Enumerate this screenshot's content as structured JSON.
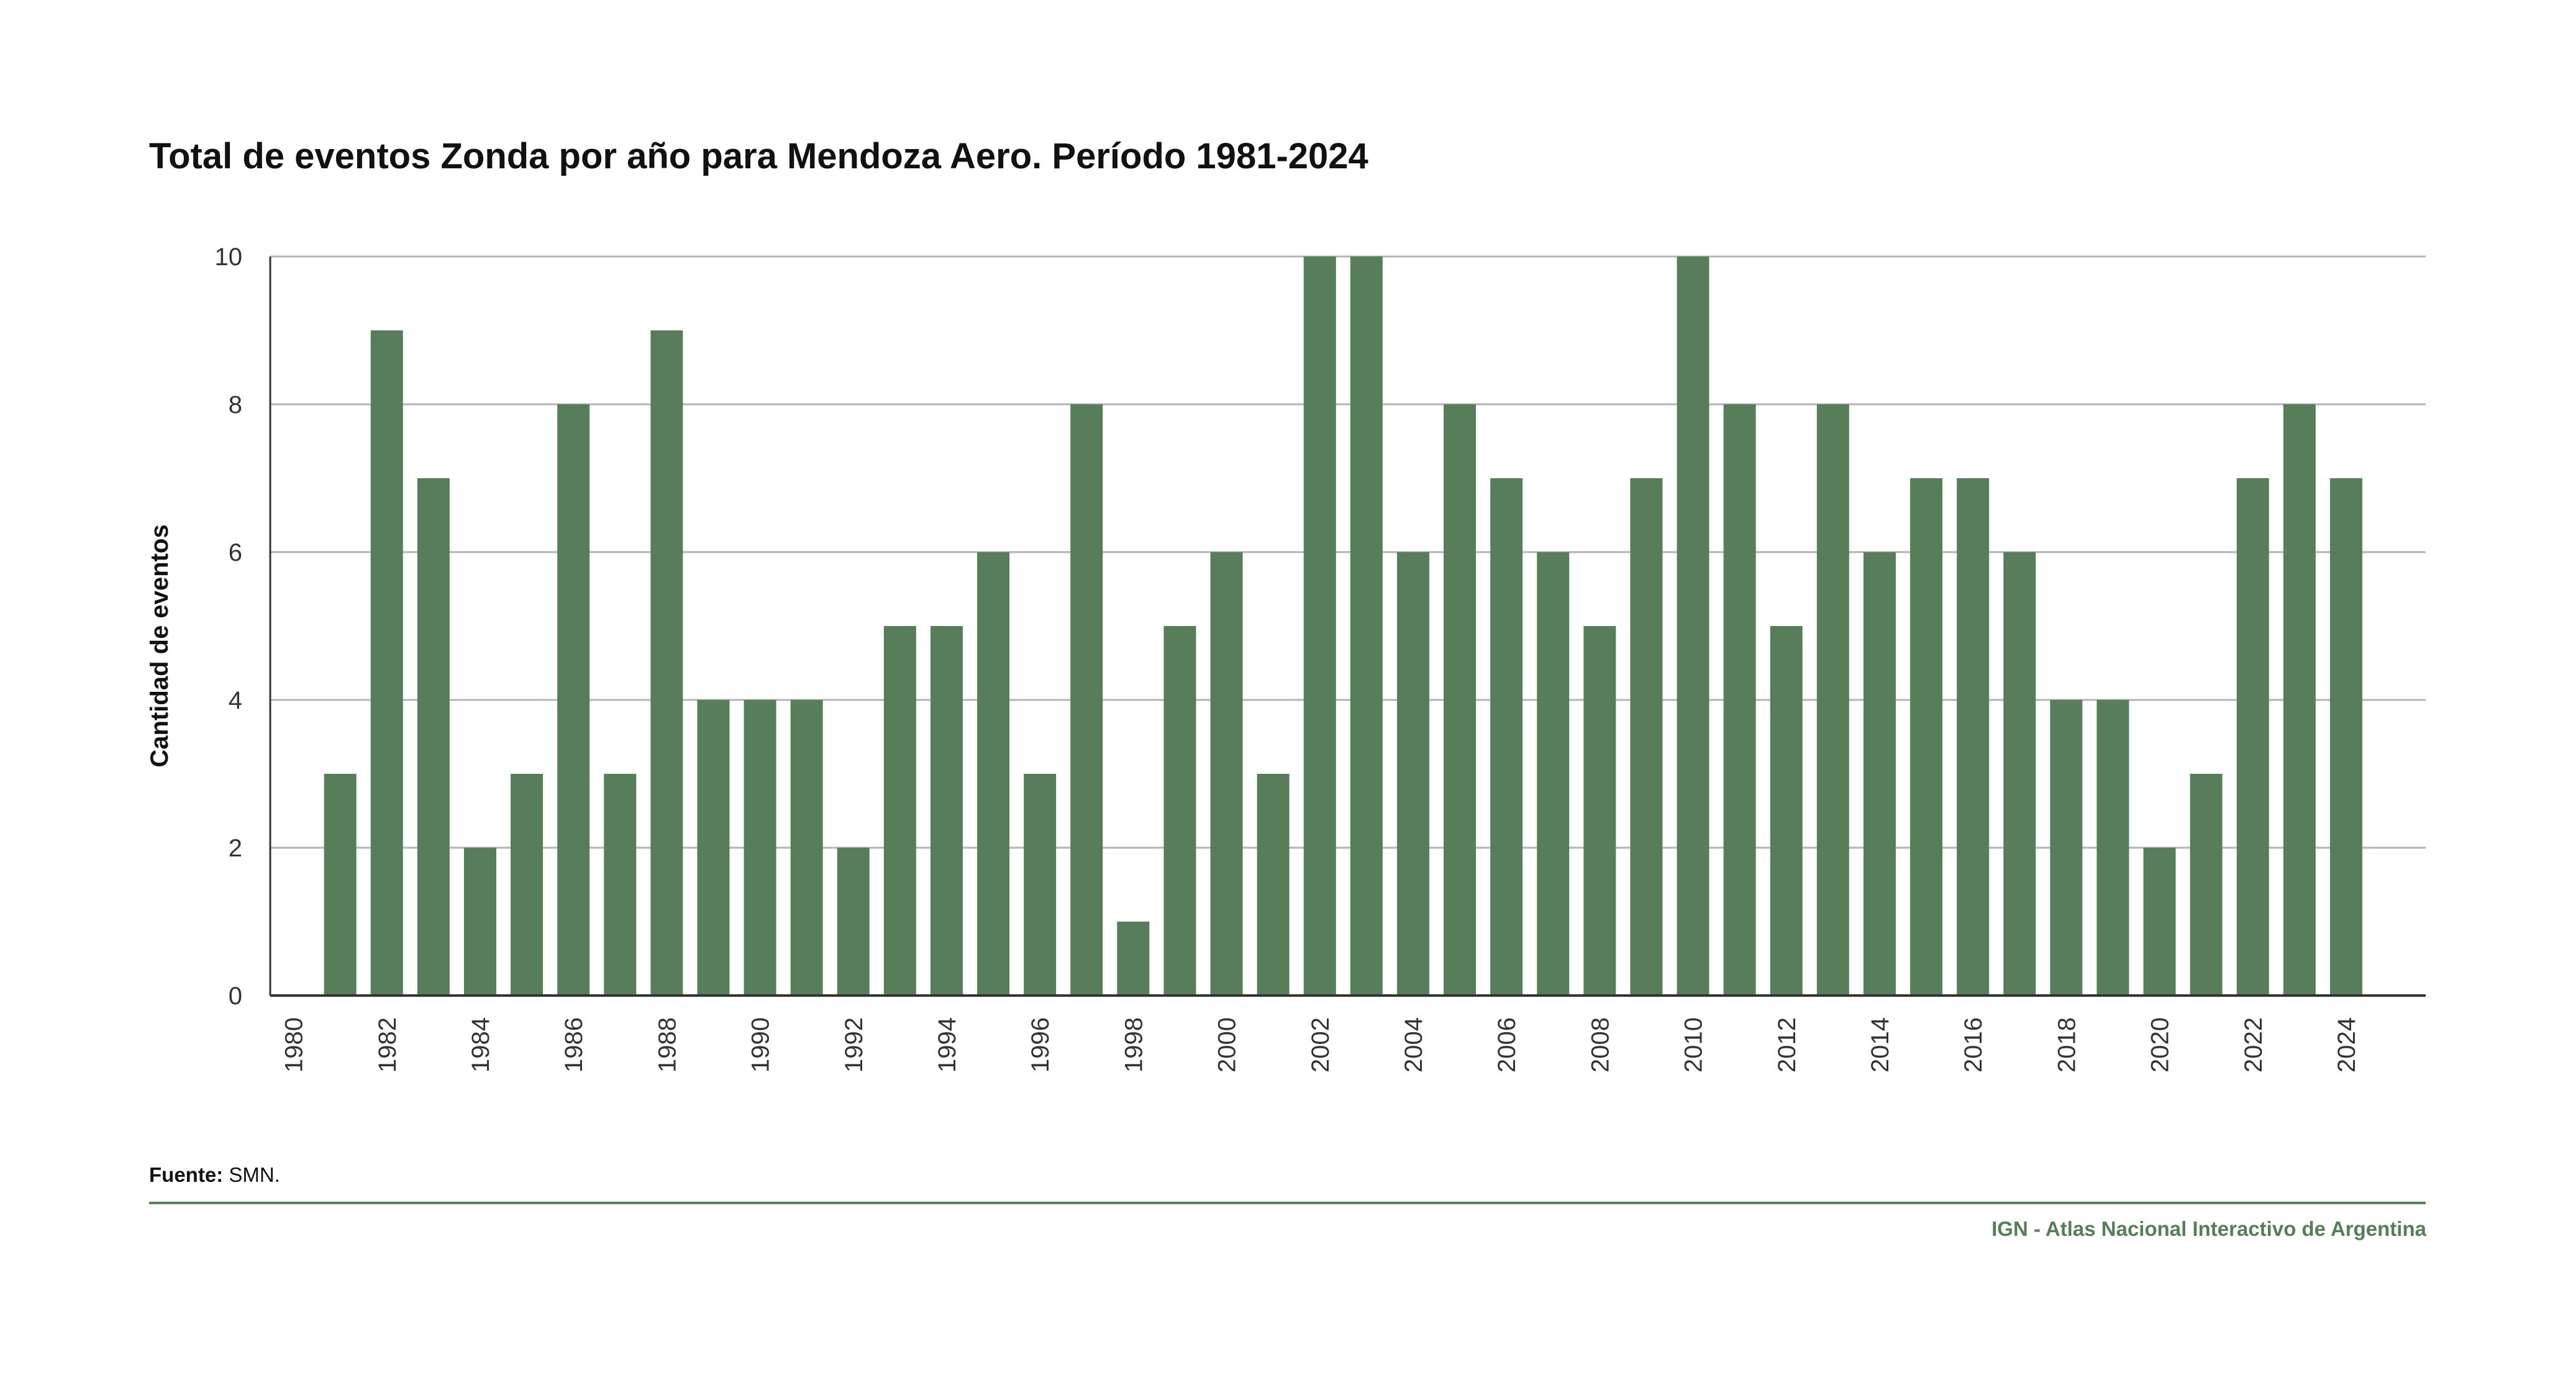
{
  "title": "Total de eventos Zonda por año para Mendoza Aero. Período 1981-2024",
  "footer": {
    "source_label": "Fuente:",
    "source_value": "SMN.",
    "credit": "IGN - Atlas Nacional Interactivo de Argentina"
  },
  "colors": {
    "bar": "#577d5a",
    "grid": "#b3b3b3",
    "axis": "#333333",
    "footer_rule": "#577d5a",
    "credit": "#577d5a"
  },
  "chart_data": {
    "type": "bar",
    "title": "Total de eventos Zonda por año para Mendoza Aero. Período 1981-2024",
    "xlabel": "",
    "ylabel": "Cantidad de eventos",
    "ylim": [
      0,
      10
    ],
    "yticks": [
      0,
      2,
      4,
      6,
      8,
      10
    ],
    "xticks": [
      "1980",
      "1982",
      "1984",
      "1986",
      "1988",
      "1990",
      "1992",
      "1994",
      "1996",
      "1998",
      "2000",
      "2002",
      "2004",
      "2006",
      "2008",
      "2010",
      "2012",
      "2014",
      "2016",
      "2018",
      "2020",
      "2022",
      "2024"
    ],
    "grid": true,
    "categories": [
      "1981",
      "1982",
      "1983",
      "1984",
      "1985",
      "1986",
      "1987",
      "1988",
      "1989",
      "1990",
      "1991",
      "1992",
      "1993",
      "1994",
      "1995",
      "1996",
      "1997",
      "1998",
      "1999",
      "2000",
      "2001",
      "2002",
      "2003",
      "2004",
      "2005",
      "2006",
      "2007",
      "2008",
      "2009",
      "2010",
      "2011",
      "2012",
      "2013",
      "2014",
      "2015",
      "2016",
      "2017",
      "2018",
      "2019",
      "2020",
      "2021",
      "2022",
      "2023",
      "2024"
    ],
    "values": [
      3,
      9,
      7,
      2,
      3,
      8,
      3,
      9,
      4,
      4,
      4,
      2,
      5,
      5,
      6,
      3,
      8,
      1,
      5,
      6,
      3,
      10,
      10,
      6,
      8,
      7,
      6,
      5,
      7,
      10,
      8,
      5,
      8,
      6,
      7,
      7,
      6,
      4,
      4,
      2,
      3,
      7,
      8,
      7
    ]
  }
}
